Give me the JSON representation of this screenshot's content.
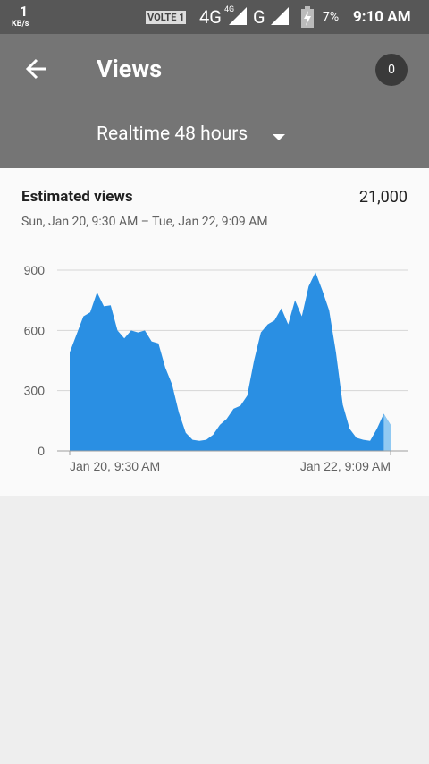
{
  "status_bar": {
    "speed": "1",
    "speed_unit": "KB/s",
    "volte": "VOLTE 1",
    "network": "4G",
    "network_small": "4G",
    "network2": "G",
    "battery": "7%",
    "time": "9:10 AM"
  },
  "header": {
    "title": "Views",
    "badge": "0",
    "period": "Realtime 48 hours"
  },
  "card": {
    "title": "Estimated views",
    "total": "21,000",
    "range": "Sun, Jan 20, 9:30 AM – Tue, Jan 22, 9:09 AM"
  },
  "chart_data": {
    "type": "area",
    "categories": [
      "Jan 20, 9:30 AM",
      null,
      null,
      null,
      null,
      null,
      null,
      null,
      null,
      null,
      null,
      null,
      null,
      null,
      null,
      null,
      null,
      null,
      null,
      null,
      null,
      null,
      null,
      null,
      null,
      null,
      null,
      null,
      null,
      null,
      null,
      null,
      null,
      null,
      null,
      null,
      null,
      null,
      null,
      null,
      null,
      null,
      null,
      null,
      null,
      null,
      null,
      "Jan 22, 9:09 AM"
    ],
    "series": [
      {
        "color": "#2a8fe3",
        "partial_color": "#90c9f2",
        "values": [
          490,
          580,
          670,
          690,
          790,
          720,
          725,
          600,
          560,
          600,
          590,
          600,
          545,
          535,
          415,
          330,
          190,
          90,
          55,
          50,
          55,
          80,
          130,
          160,
          210,
          225,
          275,
          450,
          590,
          630,
          650,
          710,
          630,
          750,
          670,
          820,
          890,
          800,
          700,
          490,
          230,
          110,
          65,
          55,
          50,
          110,
          185,
          130
        ]
      }
    ],
    "ylim": [
      0,
      900
    ],
    "yticks": [
      0,
      300,
      600,
      900
    ],
    "grid": true
  }
}
